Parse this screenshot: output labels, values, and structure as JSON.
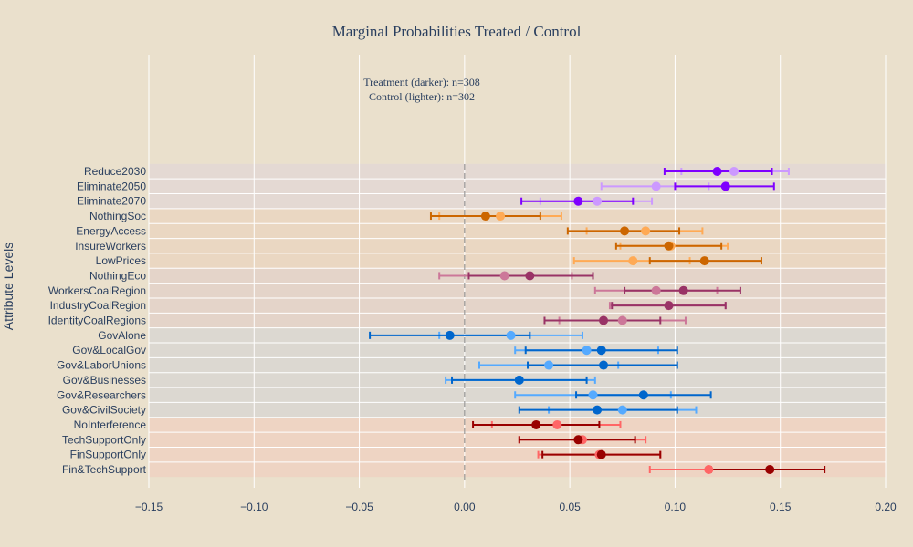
{
  "chart_data": {
    "type": "scatter",
    "title": "Marginal Probabilities Treated / Control",
    "annotation_lines": [
      "Treatment (darker): n=308",
      "Control (lighter): n=302"
    ],
    "ylabel": "Attribute Levels",
    "xlim": [
      -0.15,
      0.2
    ],
    "x_ticks": [
      -0.15,
      -0.1,
      -0.05,
      0,
      0.05,
      0.1,
      0.15,
      0.2
    ],
    "x_tick_labels": [
      "−0.15",
      "−0.10",
      "−0.05",
      "0.00",
      "0.05",
      "0.10",
      "0.15",
      "0.20"
    ],
    "reference_line_x": 0,
    "grid": true,
    "levels": [
      {
        "label": "Reduce2030",
        "group": 0,
        "treat": [
          0.12,
          0.095,
          0.146
        ],
        "control": [
          0.128,
          0.103,
          0.154
        ]
      },
      {
        "label": "Eliminate2050",
        "group": 0,
        "treat": [
          0.124,
          0.1,
          0.147
        ],
        "control": [
          0.091,
          0.065,
          0.116
        ]
      },
      {
        "label": "Eliminate2070",
        "group": 0,
        "treat": [
          0.054,
          0.027,
          0.08
        ],
        "control": [
          0.063,
          0.036,
          0.089
        ]
      },
      {
        "label": "NothingSoc",
        "group": 1,
        "treat": [
          0.01,
          -0.016,
          0.036
        ],
        "control": [
          0.017,
          -0.012,
          0.046
        ]
      },
      {
        "label": "EnergyAccess",
        "group": 1,
        "treat": [
          0.076,
          0.049,
          0.102
        ],
        "control": [
          0.086,
          0.058,
          0.113
        ]
      },
      {
        "label": "InsureWorkers",
        "group": 1,
        "treat": [
          0.097,
          0.072,
          0.122
        ],
        "control": [
          0.098,
          0.074,
          0.125
        ]
      },
      {
        "label": "LowPrices",
        "group": 1,
        "treat": [
          0.114,
          0.088,
          0.141
        ],
        "control": [
          0.08,
          0.052,
          0.107
        ]
      },
      {
        "label": "NothingEco",
        "group": 2,
        "treat": [
          0.031,
          0.002,
          0.061
        ],
        "control": [
          0.019,
          -0.012,
          0.051
        ]
      },
      {
        "label": "WorkersCoalRegion",
        "group": 2,
        "treat": [
          0.104,
          0.076,
          0.131
        ],
        "control": [
          0.091,
          0.062,
          0.12
        ]
      },
      {
        "label": "IndustryCoalRegion",
        "group": 2,
        "treat": [
          0.097,
          0.07,
          0.124
        ],
        "control": [
          0.097,
          0.069,
          0.124
        ]
      },
      {
        "label": "IdentityCoalRegions",
        "group": 2,
        "treat": [
          0.066,
          0.038,
          0.093
        ],
        "control": [
          0.075,
          0.045,
          0.105
        ]
      },
      {
        "label": "GovAlone",
        "group": 3,
        "treat": [
          -0.007,
          -0.045,
          0.031
        ],
        "control": [
          0.022,
          -0.012,
          0.056
        ]
      },
      {
        "label": "Gov&LocalGov",
        "group": 3,
        "treat": [
          0.065,
          0.029,
          0.101
        ],
        "control": [
          0.058,
          0.024,
          0.092
        ]
      },
      {
        "label": "Gov&LaborUnions",
        "group": 3,
        "treat": [
          0.066,
          0.03,
          0.101
        ],
        "control": [
          0.04,
          0.007,
          0.073
        ]
      },
      {
        "label": "Gov&Businesses",
        "group": 3,
        "treat": [
          0.026,
          -0.006,
          0.058
        ],
        "control": [
          0.026,
          -0.009,
          0.062
        ]
      },
      {
        "label": "Gov&Researchers",
        "group": 3,
        "treat": [
          0.085,
          0.053,
          0.117
        ],
        "control": [
          0.061,
          0.024,
          0.098
        ]
      },
      {
        "label": "Gov&CivilSociety",
        "group": 3,
        "treat": [
          0.063,
          0.026,
          0.101
        ],
        "control": [
          0.075,
          0.04,
          0.11
        ]
      },
      {
        "label": "NoInterference",
        "group": 4,
        "treat": [
          0.034,
          0.004,
          0.064
        ],
        "control": [
          0.044,
          0.013,
          0.074
        ]
      },
      {
        "label": "TechSupportOnly",
        "group": 4,
        "treat": [
          0.054,
          0.026,
          0.081
        ],
        "control": [
          0.056,
          0.026,
          0.086
        ]
      },
      {
        "label": "FinSupportOnly",
        "group": 4,
        "treat": [
          0.065,
          0.037,
          0.093
        ],
        "control": [
          0.064,
          0.035,
          0.093
        ]
      },
      {
        "label": "Fin&TechSupport",
        "group": 4,
        "treat": [
          0.145,
          0.117,
          0.171
        ],
        "control": [
          0.116,
          0.088,
          0.145
        ]
      }
    ],
    "groups": [
      {
        "band": "#e4d9d3",
        "treat_color": "#7f00ff",
        "control_color": "#cc99ff"
      },
      {
        "band": "#ead7c2",
        "treat_color": "#cc6600",
        "control_color": "#ffaa55"
      },
      {
        "band": "#e4d4c9",
        "treat_color": "#993366",
        "control_color": "#cc7799"
      },
      {
        "band": "#dcd8d1",
        "treat_color": "#0066cc",
        "control_color": "#55aaff"
      },
      {
        "band": "#eed4c3",
        "treat_color": "#990000",
        "control_color": "#ff6666"
      }
    ]
  }
}
